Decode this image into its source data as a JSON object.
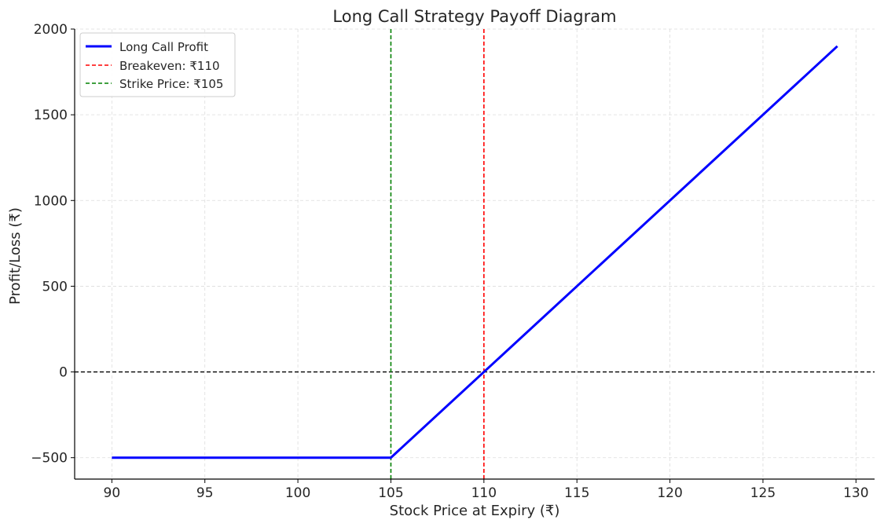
{
  "chart_data": {
    "type": "line",
    "title": "Long Call Strategy Payoff Diagram",
    "xlabel": "Stock Price at Expiry (₹)",
    "ylabel": "Profit/Loss (₹)",
    "xlim": [
      88,
      131
    ],
    "ylim": [
      -625,
      2000
    ],
    "xticks": [
      90,
      95,
      100,
      105,
      110,
      115,
      120,
      125,
      130
    ],
    "yticks": [
      -500,
      0,
      500,
      1000,
      1500,
      2000
    ],
    "ytick_labels": [
      "−500",
      "0",
      "500",
      "1000",
      "1500",
      "2000"
    ],
    "grid": true,
    "legend_position": "top-left",
    "series": [
      {
        "name": "Long Call Profit",
        "color": "#0000ff",
        "style": "solid",
        "x": [
          90,
          105,
          129
        ],
        "y": [
          -500,
          -500,
          1900
        ]
      }
    ],
    "vertical_lines": [
      {
        "name": "Breakeven: ₹110",
        "x": 110,
        "color": "#ff0000",
        "style": "dashed"
      },
      {
        "name": "Strike Price: ₹105",
        "x": 105,
        "color": "#008000",
        "style": "dashed"
      }
    ],
    "horizontal_lines": [
      {
        "y": 0,
        "color": "#000000",
        "style": "dashed"
      }
    ],
    "legend": [
      "Long Call Profit",
      "Breakeven: ₹110",
      "Strike Price: ₹105"
    ]
  }
}
